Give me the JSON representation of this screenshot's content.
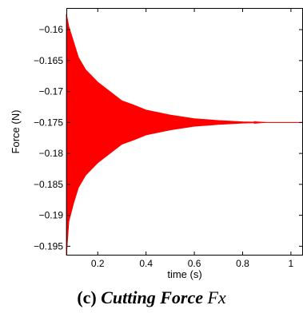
{
  "caption": {
    "label": "(c)",
    "title": "Cutting Force",
    "variable": "Fx"
  },
  "chart_data": {
    "type": "line",
    "xlabel": "time (s)",
    "ylabel": "Force (N)",
    "xlim": [
      0.07,
      1.05
    ],
    "ylim": [
      -0.1965,
      -0.1565
    ],
    "x_ticks": [
      0.2,
      0.4,
      0.6,
      0.8,
      1
    ],
    "x_tick_labels": [
      "0.2",
      "0.4",
      "0.6",
      "0.8",
      "1"
    ],
    "y_ticks": [
      -0.16,
      -0.165,
      -0.17,
      -0.175,
      -0.18,
      -0.185,
      -0.19,
      -0.195
    ],
    "y_tick_labels": [
      "−0.16",
      "−0.165",
      "−0.17",
      "−0.175",
      "−0.18",
      "−0.185",
      "−0.19",
      "−0.195"
    ],
    "grid": false,
    "series": [
      {
        "color": "#ff0000",
        "equilibrium": -0.175,
        "x": [
          0.07,
          0.08,
          0.1,
          0.12,
          0.15,
          0.2,
          0.25,
          0.3,
          0.35,
          0.4,
          0.5,
          0.6,
          0.7,
          0.8,
          0.9,
          1.0,
          1.05
        ],
        "y_upper": [
          -0.1575,
          -0.1595,
          -0.162,
          -0.1645,
          -0.1665,
          -0.1685,
          -0.17,
          -0.1715,
          -0.1722,
          -0.173,
          -0.1738,
          -0.1744,
          -0.1747,
          -0.1749,
          -0.175,
          -0.175,
          -0.175
        ],
        "y_lower": [
          -0.1965,
          -0.191,
          -0.188,
          -0.1855,
          -0.1835,
          -0.1815,
          -0.18,
          -0.1785,
          -0.1778,
          -0.177,
          -0.1762,
          -0.1756,
          -0.1753,
          -0.1751,
          -0.175,
          -0.175,
          -0.175
        ]
      }
    ]
  }
}
